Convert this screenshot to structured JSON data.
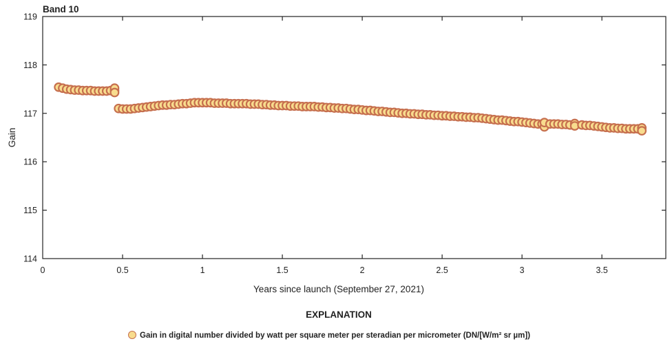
{
  "chart_data": {
    "type": "scatter",
    "title": "Band 10",
    "xlabel": "Years since launch (September 27, 2021)",
    "ylabel": "Gain",
    "xlim": [
      0,
      3.9
    ],
    "ylim": [
      114,
      119
    ],
    "xticks": [
      "0",
      "0.5",
      "1",
      "1.5",
      "2",
      "2.5",
      "3",
      "3.5"
    ],
    "yticks": [
      "114",
      "115",
      "116",
      "117",
      "118",
      "119"
    ],
    "grid": false,
    "legend": {
      "title": "EXPLANATION",
      "placement": "bottom",
      "entries": [
        "Gain in digital number divided by watt per square meter per steradian per micrometer (DN/[W/m² sr µm])"
      ]
    },
    "colors": {
      "marker_fill": "#f8dc8e",
      "marker_edge": "#c66f4e"
    },
    "series": [
      {
        "points": [
          [
            0.1,
            117.54
          ],
          [
            0.125,
            117.52
          ],
          [
            0.15,
            117.5
          ],
          [
            0.175,
            117.49
          ],
          [
            0.2,
            117.48
          ],
          [
            0.225,
            117.48
          ],
          [
            0.25,
            117.47
          ],
          [
            0.275,
            117.47
          ],
          [
            0.3,
            117.47
          ],
          [
            0.325,
            117.46
          ],
          [
            0.35,
            117.46
          ],
          [
            0.375,
            117.46
          ],
          [
            0.4,
            117.46
          ],
          [
            0.425,
            117.47
          ],
          [
            0.45,
            117.47
          ],
          [
            0.45,
            117.52
          ],
          [
            0.45,
            117.43
          ],
          [
            0.475,
            117.1
          ],
          [
            0.5,
            117.09
          ],
          [
            0.525,
            117.09
          ],
          [
            0.55,
            117.09
          ],
          [
            0.575,
            117.1
          ],
          [
            0.6,
            117.11
          ],
          [
            0.625,
            117.12
          ],
          [
            0.65,
            117.13
          ],
          [
            0.675,
            117.14
          ],
          [
            0.7,
            117.15
          ],
          [
            0.725,
            117.16
          ],
          [
            0.75,
            117.17
          ],
          [
            0.775,
            117.17
          ],
          [
            0.8,
            117.18
          ],
          [
            0.825,
            117.18
          ],
          [
            0.85,
            117.19
          ],
          [
            0.875,
            117.2
          ],
          [
            0.9,
            117.2
          ],
          [
            0.925,
            117.21
          ],
          [
            0.95,
            117.22
          ],
          [
            0.975,
            117.22
          ],
          [
            1.0,
            117.22
          ],
          [
            1.025,
            117.22
          ],
          [
            1.05,
            117.22
          ],
          [
            1.075,
            117.21
          ],
          [
            1.1,
            117.21
          ],
          [
            1.125,
            117.21
          ],
          [
            1.15,
            117.21
          ],
          [
            1.175,
            117.2
          ],
          [
            1.2,
            117.2
          ],
          [
            1.225,
            117.2
          ],
          [
            1.25,
            117.2
          ],
          [
            1.275,
            117.2
          ],
          [
            1.3,
            117.19
          ],
          [
            1.325,
            117.19
          ],
          [
            1.35,
            117.19
          ],
          [
            1.375,
            117.18
          ],
          [
            1.4,
            117.18
          ],
          [
            1.425,
            117.17
          ],
          [
            1.45,
            117.17
          ],
          [
            1.475,
            117.16
          ],
          [
            1.5,
            117.16
          ],
          [
            1.525,
            117.16
          ],
          [
            1.55,
            117.15
          ],
          [
            1.575,
            117.15
          ],
          [
            1.6,
            117.15
          ],
          [
            1.625,
            117.14
          ],
          [
            1.65,
            117.14
          ],
          [
            1.675,
            117.14
          ],
          [
            1.7,
            117.14
          ],
          [
            1.725,
            117.13
          ],
          [
            1.75,
            117.13
          ],
          [
            1.775,
            117.12
          ],
          [
            1.8,
            117.12
          ],
          [
            1.825,
            117.11
          ],
          [
            1.85,
            117.11
          ],
          [
            1.875,
            117.1
          ],
          [
            1.9,
            117.1
          ],
          [
            1.925,
            117.09
          ],
          [
            1.95,
            117.08
          ],
          [
            1.975,
            117.08
          ],
          [
            2.0,
            117.07
          ],
          [
            2.025,
            117.06
          ],
          [
            2.05,
            117.06
          ],
          [
            2.075,
            117.05
          ],
          [
            2.1,
            117.04
          ],
          [
            2.125,
            117.04
          ],
          [
            2.15,
            117.03
          ],
          [
            2.175,
            117.02
          ],
          [
            2.2,
            117.02
          ],
          [
            2.225,
            117.01
          ],
          [
            2.25,
            117.0
          ],
          [
            2.275,
            117.0
          ],
          [
            2.3,
            116.99
          ],
          [
            2.325,
            116.99
          ],
          [
            2.35,
            116.98
          ],
          [
            2.375,
            116.98
          ],
          [
            2.4,
            116.97
          ],
          [
            2.425,
            116.97
          ],
          [
            2.45,
            116.96
          ],
          [
            2.475,
            116.96
          ],
          [
            2.5,
            116.95
          ],
          [
            2.525,
            116.95
          ],
          [
            2.55,
            116.94
          ],
          [
            2.575,
            116.94
          ],
          [
            2.6,
            116.93
          ],
          [
            2.625,
            116.93
          ],
          [
            2.65,
            116.92
          ],
          [
            2.675,
            116.92
          ],
          [
            2.7,
            116.91
          ],
          [
            2.725,
            116.91
          ],
          [
            2.75,
            116.9
          ],
          [
            2.775,
            116.89
          ],
          [
            2.8,
            116.88
          ],
          [
            2.825,
            116.87
          ],
          [
            2.85,
            116.86
          ],
          [
            2.875,
            116.86
          ],
          [
            2.9,
            116.85
          ],
          [
            2.925,
            116.84
          ],
          [
            2.95,
            116.83
          ],
          [
            2.975,
            116.83
          ],
          [
            3.0,
            116.82
          ],
          [
            3.025,
            116.81
          ],
          [
            3.05,
            116.8
          ],
          [
            3.075,
            116.79
          ],
          [
            3.1,
            116.78
          ],
          [
            3.125,
            116.78
          ],
          [
            3.14,
            116.72
          ],
          [
            3.14,
            116.81
          ],
          [
            3.175,
            116.78
          ],
          [
            3.2,
            116.78
          ],
          [
            3.225,
            116.78
          ],
          [
            3.25,
            116.77
          ],
          [
            3.275,
            116.77
          ],
          [
            3.3,
            116.76
          ],
          [
            3.33,
            116.79
          ],
          [
            3.33,
            116.74
          ],
          [
            3.375,
            116.76
          ],
          [
            3.4,
            116.75
          ],
          [
            3.425,
            116.75
          ],
          [
            3.45,
            116.74
          ],
          [
            3.475,
            116.73
          ],
          [
            3.5,
            116.72
          ],
          [
            3.525,
            116.71
          ],
          [
            3.55,
            116.7
          ],
          [
            3.575,
            116.7
          ],
          [
            3.6,
            116.69
          ],
          [
            3.625,
            116.69
          ],
          [
            3.65,
            116.68
          ],
          [
            3.675,
            116.68
          ],
          [
            3.7,
            116.68
          ],
          [
            3.725,
            116.68
          ],
          [
            3.75,
            116.7
          ],
          [
            3.75,
            116.64
          ]
        ]
      }
    ]
  }
}
